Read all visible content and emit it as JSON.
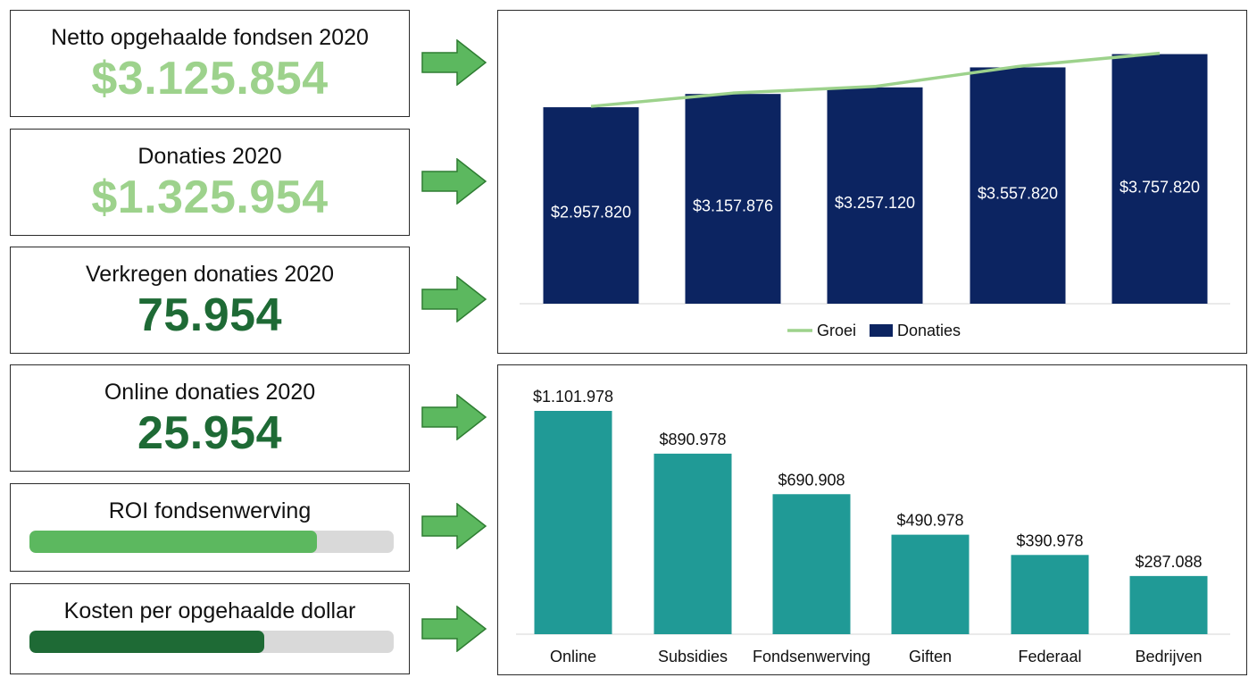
{
  "kpis": [
    {
      "title": "Netto opgehaalde fondsen 2020",
      "value": "$3.125.854",
      "color": "#9dd28c"
    },
    {
      "title": "Donaties 2020",
      "value": "$1.325.954",
      "color": "#9dd28c"
    },
    {
      "title": "Verkregen donaties 2020",
      "value": "75.954",
      "color": "#1e6a35"
    },
    {
      "title": "Online donaties 2020",
      "value": "25.954",
      "color": "#1e6a35"
    }
  ],
  "progress": [
    {
      "title": "ROI fondsenwerving",
      "fraction": 0.79,
      "color": "#5cb85f"
    },
    {
      "title": "Kosten per opgehaalde dollar",
      "fraction": 0.645,
      "color": "#1e6a35"
    }
  ],
  "colors": {
    "arrow_fill": "#5cb85f",
    "arrow_stroke": "#2e7d32",
    "navy": "#0c2461",
    "line_green": "#9dd28c",
    "teal": "#209a96"
  },
  "chart_data": [
    {
      "type": "bar",
      "categories": [
        "",
        "",
        "",
        "",
        ""
      ],
      "series": [
        {
          "name": "Donaties",
          "values": [
            2957820,
            3157876,
            3257120,
            3557820,
            3757820
          ],
          "color": "#0c2461"
        },
        {
          "name": "Groei",
          "type": "line",
          "values": [
            2957820,
            3157876,
            3257120,
            3557820,
            3757820
          ],
          "color": "#9dd28c"
        }
      ],
      "data_labels": [
        "$2.957.820",
        "$3.157.876",
        "$3.257.120",
        "$3.557.820",
        "$3.757.820"
      ],
      "legend": [
        "Groei",
        "Donaties"
      ],
      "legend_position": "bottom",
      "ylim": [
        0,
        3900000
      ],
      "grid": false
    },
    {
      "type": "bar",
      "categories": [
        "Online",
        "Subsidies",
        "Fondsenwerving",
        "Giften",
        "Federaal",
        "Bedrijven"
      ],
      "values": [
        1101978,
        890978,
        690908,
        490978,
        390978,
        287088
      ],
      "data_labels": [
        "$1.101.978",
        "$890.978",
        "$690.908",
        "$490.978",
        "$390.978",
        "$287.088"
      ],
      "color": "#209a96",
      "ylim": [
        0,
        1101978
      ],
      "grid": false
    }
  ]
}
